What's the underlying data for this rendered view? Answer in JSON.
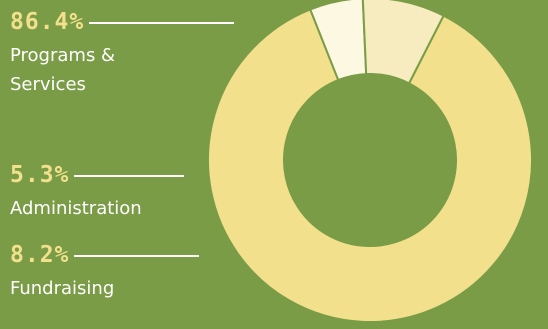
{
  "chart_data": {
    "type": "pie",
    "donut": true,
    "slices": [
      {
        "label": "Programs & Services",
        "value": 86.4,
        "value_label": "86.4%",
        "color": "#f2e08c"
      },
      {
        "label": "Administration",
        "value": 5.3,
        "value_label": "5.3%",
        "color": "#fdf8e2"
      },
      {
        "label": "Fundraising",
        "value": 8.2,
        "value_label": "8.2%",
        "color": "#f6ecbf"
      }
    ]
  },
  "labels": {
    "programs": {
      "pct": "86.4%",
      "name_line1": "Programs &",
      "name_line2": "Services"
    },
    "administration": {
      "pct": "5.3%",
      "name": "Administration"
    },
    "fundraising": {
      "pct": "8.2%",
      "name": "Fundraising"
    }
  },
  "colors": {
    "background": "#7a9c47",
    "label_accent": "#f2e08c",
    "slice_outline": "#7a9c47"
  }
}
